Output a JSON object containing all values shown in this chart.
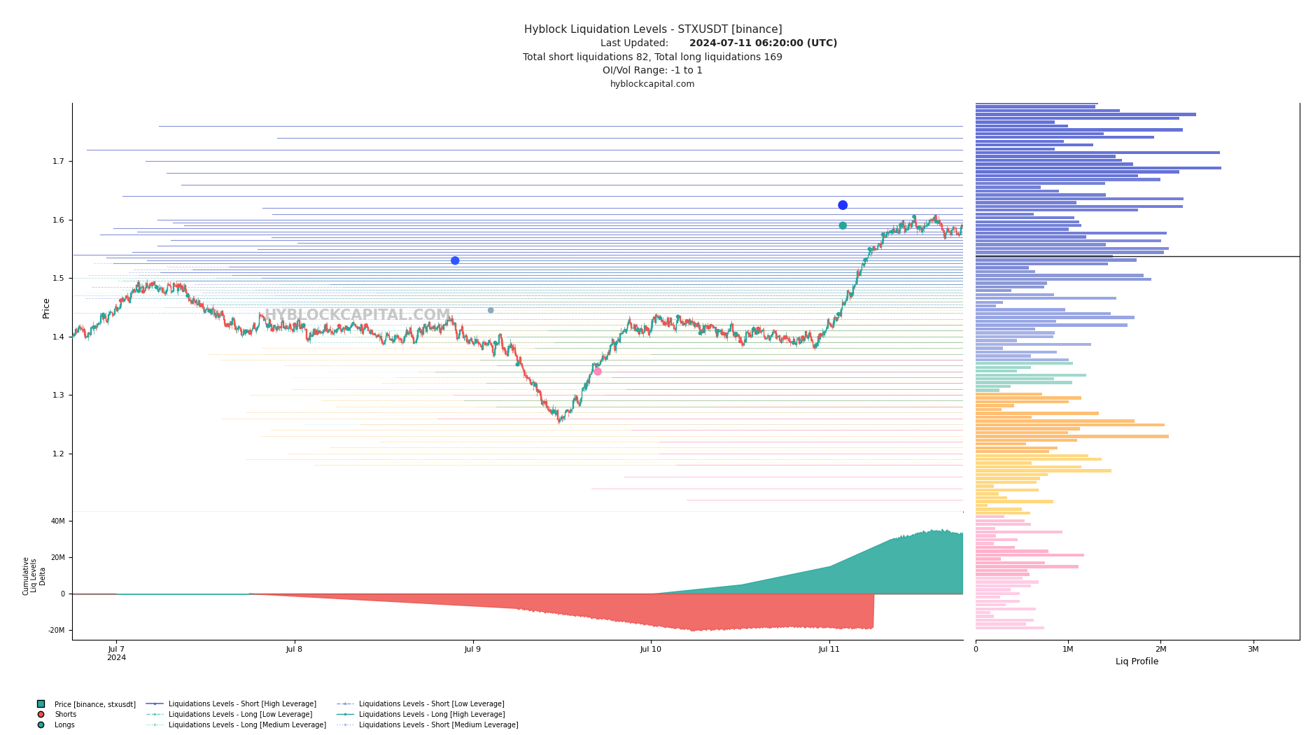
{
  "title_line1": "Hyblock Liquidation Levels - STXUSDT [binance]",
  "title_line2_normal": "Last Updated: ",
  "title_line2_bold": "2024-07-11 06:20:00 (UTC)",
  "title_line3": "Total short liquidations 82, Total long liquidations 169",
  "title_line4": "OI/Vol Range: -1 to 1",
  "title_line5": "hyblockcapital.com",
  "watermark": "HYBLOCKCAPITAL.COM",
  "background_color": "#ffffff",
  "price_color_up": "#26a69a",
  "price_color_down": "#ef5350",
  "price_ylim": [
    1.1,
    1.8
  ],
  "cum_ylim": [
    -25000000,
    45000000
  ],
  "yticks_price": [
    1.2,
    1.3,
    1.4,
    1.5,
    1.6,
    1.7
  ],
  "yticks_cum": [
    -20000000,
    0,
    20000000,
    40000000
  ],
  "xtick_labels": [
    "Jul 7\n2024",
    "Jul 8",
    "Jul 9",
    "Jul 10",
    "Jul 11"
  ],
  "liq_profile_xlim": [
    0,
    3500000
  ],
  "profile_xticks": [
    0,
    1000000,
    2000000,
    3000000
  ],
  "profile_xtick_labels": [
    "0",
    "1M",
    "2M",
    "3M"
  ]
}
